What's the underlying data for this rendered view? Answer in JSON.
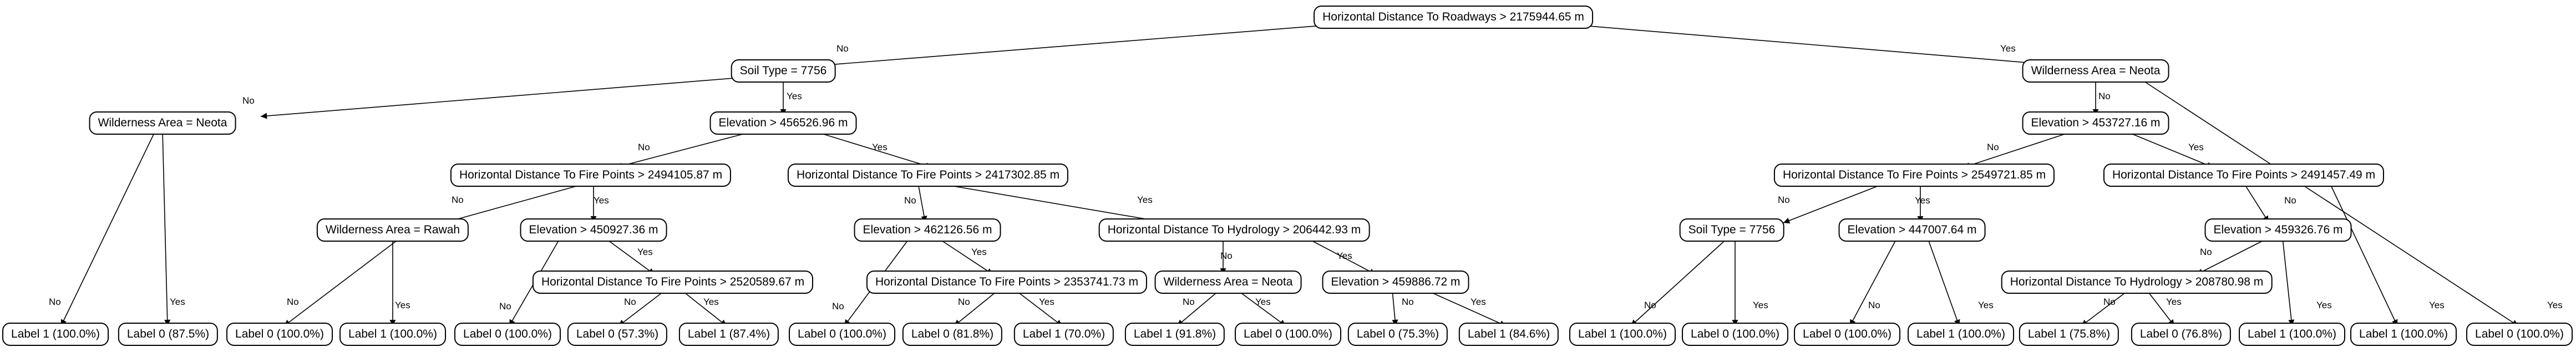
{
  "colors": {
    "line": "#000000",
    "node_border": "#000000",
    "background": "#ffffff"
  },
  "edge_labels": {
    "no": "No",
    "yes": "Yes"
  },
  "nodes": {
    "root": "Horizontal Distance To Roadways > 2175944.65 m",
    "soil7756_a": "Soil Type = 7756",
    "wild_neota_a": "Wilderness Area = Neota",
    "elev_456526": "Elevation > 456526.96 m",
    "hdfp_2494105": "Horizontal Distance To Fire Points > 2494105.87 m",
    "hdfp_2417302": "Horizontal Distance To Fire Points > 2417302.85 m",
    "wild_rawah": "Wilderness Area = Rawah",
    "elev_450927": "Elevation > 450927.36 m",
    "hdfp_2520589": "Horizontal Distance To Fire Points > 2520589.67 m",
    "elev_462126": "Elevation > 462126.56 m",
    "hdfp_2353741": "Horizontal Distance To Fire Points > 2353741.73 m",
    "hdh_206442": "Horizontal Distance To Hydrology > 206442.93 m",
    "wild_neota_b": "Wilderness Area = Neota",
    "elev_459886": "Elevation > 459886.72 m",
    "wild_neota_c": "Wilderness Area = Neota",
    "elev_453727": "Elevation > 453727.16 m",
    "hdfp_2549721": "Horizontal Distance To Fire Points > 2549721.85 m",
    "hdfp_2491457": "Horizontal Distance To Fire Points > 2491457.49 m",
    "soil7756_b": "Soil Type = 7756",
    "elev_447007": "Elevation > 447007.64 m",
    "elev_459326": "Elevation > 459326.76 m",
    "hdh_208780": "Horizontal Distance To Hydrology > 208780.98 m",
    "leaf_1": "Label 1 (100.0%)",
    "leaf_2": "Label 0 (87.5%)",
    "leaf_3": "Label 0 (100.0%)",
    "leaf_4": "Label 1 (100.0%)",
    "leaf_5": "Label 0 (100.0%)",
    "leaf_6": "Label 0 (57.3%)",
    "leaf_7": "Label 1 (87.4%)",
    "leaf_8": "Label 0 (100.0%)",
    "leaf_9": "Label 0 (81.8%)",
    "leaf_10": "Label 1 (70.0%)",
    "leaf_11": "Label 1 (91.8%)",
    "leaf_12": "Label 0 (100.0%)",
    "leaf_13": "Label 0 (75.3%)",
    "leaf_14": "Label 1 (84.6%)",
    "leaf_15": "Label 1 (100.0%)",
    "leaf_16": "Label 0 (100.0%)",
    "leaf_17": "Label 0 (100.0%)",
    "leaf_18": "Label 1 (100.0%)",
    "leaf_19": "Label 1 (75.8%)",
    "leaf_20": "Label 0 (76.8%)",
    "leaf_21": "Label 1 (100.0%)",
    "leaf_22": "Label 1 (100.0%)",
    "leaf_23": "Label 0 (100.0%)"
  }
}
